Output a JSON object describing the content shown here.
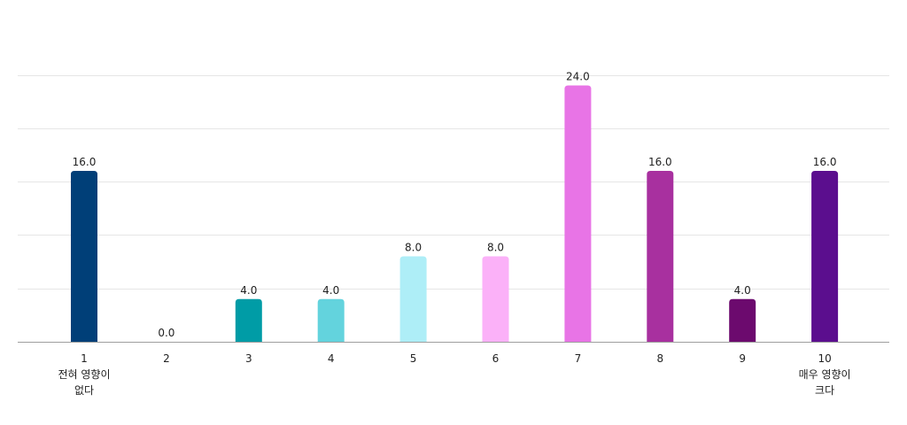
{
  "chart_data": {
    "type": "bar",
    "categories": [
      "1",
      "2",
      "3",
      "4",
      "5",
      "6",
      "7",
      "8",
      "9",
      "10"
    ],
    "category_sublabels": [
      [
        "전혀 영향이",
        "없다"
      ],
      [],
      [],
      [],
      [],
      [],
      [],
      [],
      [],
      [
        "매우 영향이",
        "크다"
      ]
    ],
    "values": [
      16.0,
      0.0,
      4.0,
      4.0,
      8.0,
      8.0,
      24.0,
      16.0,
      4.0,
      16.0
    ],
    "value_labels": [
      "16.0",
      "0.0",
      "4.0",
      "4.0",
      "8.0",
      "8.0",
      "24.0",
      "16.0",
      "4.0",
      "16.0"
    ],
    "colors": [
      "#003f78",
      "#003f78",
      "#009ca6",
      "#63d3dd",
      "#aeeef7",
      "#fbb1f8",
      "#e874e6",
      "#a8309f",
      "#6c0a6e",
      "#5b0e8e"
    ],
    "ylim": [
      0,
      28.8
    ],
    "grid": true,
    "legend": "none"
  }
}
